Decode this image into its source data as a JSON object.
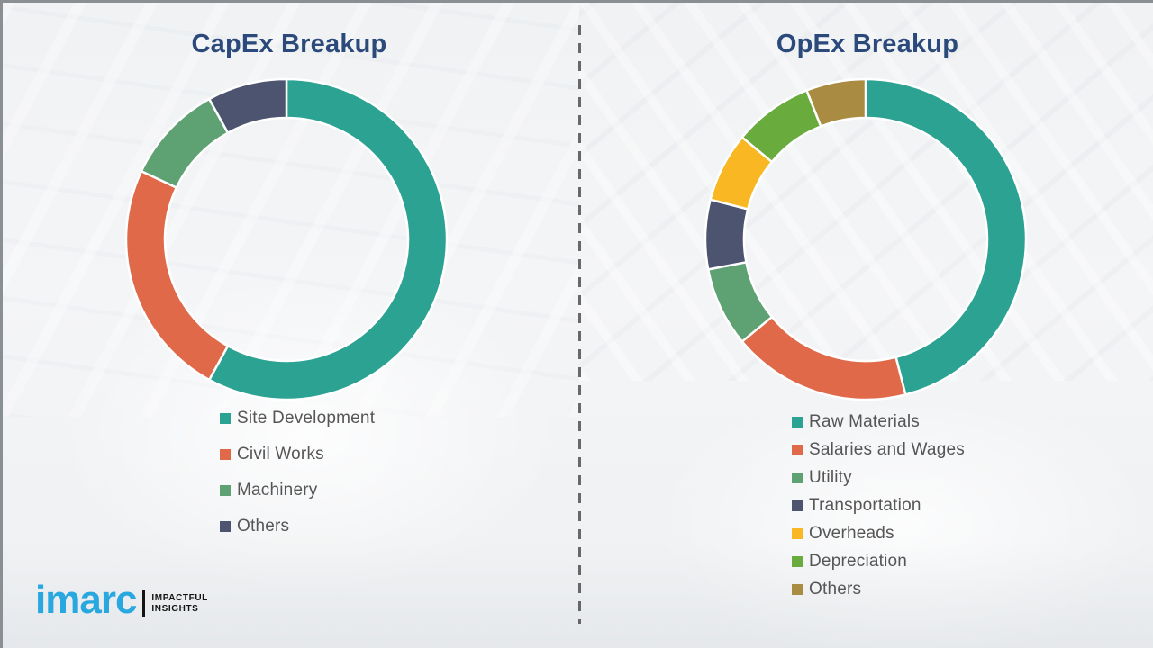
{
  "page": {
    "background_color": "#f1f3f5",
    "border_color": "#8a8f94",
    "divider_color": "#4f4f4f",
    "title_color": "#2b4a7b",
    "legend_text_color": "#565656"
  },
  "chart_data": [
    {
      "type": "pie",
      "subtype": "donut",
      "title": "CapEx Breakup",
      "categories": [
        "Site Development",
        "Civil Works",
        "Machinery",
        "Others"
      ],
      "values": [
        58,
        24,
        10,
        8
      ],
      "values_note": "percent, estimated from arc angles (no data labels shown)",
      "colors": [
        "#2BA292",
        "#E0694A",
        "#5EA173",
        "#4D5470"
      ],
      "start_angle_deg": 0,
      "direction": "clockwise",
      "donut_hole_ratio": 0.76,
      "legend_position": "below-left",
      "grid": false
    },
    {
      "type": "pie",
      "subtype": "donut",
      "title": "OpEx Breakup",
      "categories": [
        "Raw Materials",
        "Salaries and Wages",
        "Utility",
        "Transportation",
        "Overheads",
        "Depreciation",
        "Others"
      ],
      "values": [
        46,
        18,
        8,
        7,
        7,
        8,
        6
      ],
      "values_note": "percent, estimated from arc angles (no data labels shown)",
      "colors": [
        "#2BA292",
        "#E0694A",
        "#5EA173",
        "#4D5470",
        "#F8B723",
        "#6AAB3E",
        "#A98C42"
      ],
      "start_angle_deg": 0,
      "direction": "clockwise",
      "donut_hole_ratio": 0.76,
      "legend_position": "below-left",
      "grid": false
    }
  ],
  "logo": {
    "brand": "imarc",
    "tagline_line1": "IMPACTFUL",
    "tagline_line2": "INSIGHTS",
    "brand_color": "#29A8E0"
  }
}
